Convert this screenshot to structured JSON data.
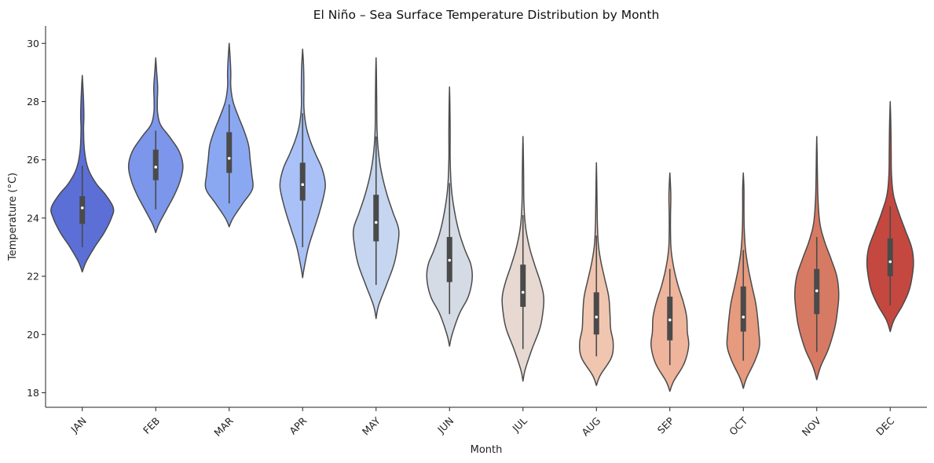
{
  "chart_data": {
    "type": "violin",
    "title": "El Niño – Sea Surface Temperature Distribution by Month",
    "xlabel": "Month",
    "ylabel": "Temperature (°C)",
    "ylim": [
      17.5,
      30.6
    ],
    "yticks": [
      18,
      20,
      22,
      24,
      26,
      28,
      30
    ],
    "grid": false,
    "categories": [
      "JAN",
      "FEB",
      "MAR",
      "APR",
      "MAY",
      "JUN",
      "JUL",
      "AUG",
      "SEP",
      "OCT",
      "NOV",
      "DEC"
    ],
    "colors": [
      "#5b6fd6",
      "#7b96ea",
      "#8aa8f2",
      "#a9c1f7",
      "#c6d6f0",
      "#d5dbe4",
      "#e7d8d2",
      "#f0c6b1",
      "#efb49c",
      "#e69a7e",
      "#d77a64",
      "#c4483f"
    ],
    "series": [
      {
        "name": "JAN",
        "min": 23.0,
        "q1": 23.8,
        "median": 24.35,
        "q3": 24.75,
        "max": 25.8,
        "extent": [
          22.15,
          28.9
        ],
        "density": [
          [
            22.15,
            0.0
          ],
          [
            22.5,
            0.12
          ],
          [
            23.0,
            0.38
          ],
          [
            23.5,
            0.68
          ],
          [
            24.0,
            0.9
          ],
          [
            24.35,
            0.96
          ],
          [
            24.8,
            0.72
          ],
          [
            25.2,
            0.42
          ],
          [
            25.7,
            0.18
          ],
          [
            26.3,
            0.07
          ],
          [
            27.0,
            0.04
          ],
          [
            27.5,
            0.05
          ],
          [
            28.0,
            0.04
          ],
          [
            28.5,
            0.02
          ],
          [
            28.9,
            0.0
          ]
        ]
      },
      {
        "name": "FEB",
        "min": 24.3,
        "q1": 25.3,
        "median": 25.75,
        "q3": 26.35,
        "max": 27.0,
        "extent": [
          23.5,
          29.5
        ],
        "density": [
          [
            23.5,
            0.0
          ],
          [
            23.8,
            0.1
          ],
          [
            24.3,
            0.34
          ],
          [
            24.8,
            0.58
          ],
          [
            25.3,
            0.76
          ],
          [
            25.8,
            0.84
          ],
          [
            26.3,
            0.72
          ],
          [
            26.8,
            0.42
          ],
          [
            27.2,
            0.15
          ],
          [
            27.6,
            0.06
          ],
          [
            28.0,
            0.05
          ],
          [
            28.5,
            0.06
          ],
          [
            29.0,
            0.03
          ],
          [
            29.5,
            0.0
          ]
        ]
      },
      {
        "name": "MAR",
        "min": 24.5,
        "q1": 25.55,
        "median": 26.05,
        "q3": 26.95,
        "max": 27.9,
        "extent": [
          23.7,
          30.0
        ],
        "density": [
          [
            23.7,
            0.0
          ],
          [
            24.0,
            0.12
          ],
          [
            24.5,
            0.42
          ],
          [
            25.0,
            0.72
          ],
          [
            25.5,
            0.7
          ],
          [
            26.0,
            0.65
          ],
          [
            26.5,
            0.6
          ],
          [
            27.0,
            0.46
          ],
          [
            27.5,
            0.28
          ],
          [
            28.0,
            0.12
          ],
          [
            28.5,
            0.05
          ],
          [
            29.0,
            0.05
          ],
          [
            29.5,
            0.03
          ],
          [
            30.0,
            0.0
          ]
        ]
      },
      {
        "name": "APR",
        "min": 23.0,
        "q1": 24.6,
        "median": 25.15,
        "q3": 25.9,
        "max": 27.6,
        "extent": [
          21.95,
          29.8
        ],
        "density": [
          [
            21.95,
            0.0
          ],
          [
            22.3,
            0.05
          ],
          [
            23.0,
            0.18
          ],
          [
            23.6,
            0.35
          ],
          [
            24.2,
            0.52
          ],
          [
            24.8,
            0.66
          ],
          [
            25.2,
            0.7
          ],
          [
            25.7,
            0.6
          ],
          [
            26.2,
            0.4
          ],
          [
            26.7,
            0.22
          ],
          [
            27.2,
            0.1
          ],
          [
            27.8,
            0.04
          ],
          [
            28.5,
            0.04
          ],
          [
            29.2,
            0.03
          ],
          [
            29.8,
            0.0
          ]
        ]
      },
      {
        "name": "MAY",
        "min": 21.7,
        "q1": 23.2,
        "median": 23.85,
        "q3": 24.8,
        "max": 26.8,
        "extent": [
          20.55,
          29.5
        ],
        "density": [
          [
            20.55,
            0.0
          ],
          [
            21.0,
            0.08
          ],
          [
            21.7,
            0.32
          ],
          [
            22.4,
            0.55
          ],
          [
            23.0,
            0.66
          ],
          [
            23.6,
            0.7
          ],
          [
            24.2,
            0.52
          ],
          [
            24.8,
            0.34
          ],
          [
            25.5,
            0.18
          ],
          [
            26.2,
            0.08
          ],
          [
            27.0,
            0.03
          ],
          [
            28.0,
            0.02
          ],
          [
            29.0,
            0.01
          ],
          [
            29.5,
            0.0
          ]
        ]
      },
      {
        "name": "JUN",
        "min": 20.7,
        "q1": 21.8,
        "median": 22.55,
        "q3": 23.35,
        "max": 25.2,
        "extent": [
          19.6,
          28.5
        ],
        "density": [
          [
            19.6,
            0.0
          ],
          [
            20.0,
            0.08
          ],
          [
            20.7,
            0.3
          ],
          [
            21.3,
            0.58
          ],
          [
            21.9,
            0.7
          ],
          [
            22.4,
            0.66
          ],
          [
            22.9,
            0.48
          ],
          [
            23.5,
            0.3
          ],
          [
            24.2,
            0.16
          ],
          [
            25.0,
            0.06
          ],
          [
            26.0,
            0.02
          ],
          [
            27.0,
            0.02
          ],
          [
            28.0,
            0.01
          ],
          [
            28.5,
            0.0
          ]
        ]
      },
      {
        "name": "JUL",
        "min": 19.5,
        "q1": 20.95,
        "median": 21.45,
        "q3": 22.4,
        "max": 24.1,
        "extent": [
          18.4,
          26.8
        ],
        "density": [
          [
            18.4,
            0.0
          ],
          [
            18.8,
            0.07
          ],
          [
            19.5,
            0.28
          ],
          [
            20.2,
            0.52
          ],
          [
            20.8,
            0.62
          ],
          [
            21.3,
            0.64
          ],
          [
            21.8,
            0.54
          ],
          [
            22.4,
            0.36
          ],
          [
            23.0,
            0.2
          ],
          [
            23.7,
            0.08
          ],
          [
            24.5,
            0.03
          ],
          [
            25.5,
            0.02
          ],
          [
            26.3,
            0.01
          ],
          [
            26.8,
            0.0
          ]
        ]
      },
      {
        "name": "AUG",
        "min": 19.25,
        "q1": 20.0,
        "median": 20.6,
        "q3": 21.45,
        "max": 23.4,
        "extent": [
          18.25,
          25.9
        ],
        "density": [
          [
            18.25,
            0.0
          ],
          [
            18.6,
            0.12
          ],
          [
            19.2,
            0.46
          ],
          [
            19.7,
            0.52
          ],
          [
            20.2,
            0.44
          ],
          [
            20.7,
            0.42
          ],
          [
            21.3,
            0.38
          ],
          [
            21.9,
            0.26
          ],
          [
            22.5,
            0.14
          ],
          [
            23.1,
            0.06
          ],
          [
            23.8,
            0.03
          ],
          [
            24.5,
            0.02
          ],
          [
            25.3,
            0.01
          ],
          [
            25.9,
            0.0
          ]
        ]
      },
      {
        "name": "SEP",
        "min": 18.95,
        "q1": 19.8,
        "median": 20.5,
        "q3": 21.3,
        "max": 22.25,
        "extent": [
          18.05,
          25.55
        ],
        "density": [
          [
            18.05,
            0.0
          ],
          [
            18.4,
            0.12
          ],
          [
            19.0,
            0.44
          ],
          [
            19.6,
            0.58
          ],
          [
            20.1,
            0.54
          ],
          [
            20.6,
            0.52
          ],
          [
            21.1,
            0.42
          ],
          [
            21.7,
            0.25
          ],
          [
            22.3,
            0.12
          ],
          [
            22.9,
            0.04
          ],
          [
            23.5,
            0.02
          ],
          [
            24.1,
            0.02
          ],
          [
            24.7,
            0.03
          ],
          [
            25.1,
            0.02
          ],
          [
            25.55,
            0.0
          ]
        ]
      },
      {
        "name": "OCT",
        "min": 19.1,
        "q1": 20.1,
        "median": 20.6,
        "q3": 21.65,
        "max": 22.9,
        "extent": [
          18.15,
          25.55
        ],
        "density": [
          [
            18.15,
            0.0
          ],
          [
            18.5,
            0.1
          ],
          [
            19.1,
            0.36
          ],
          [
            19.6,
            0.5
          ],
          [
            20.1,
            0.48
          ],
          [
            20.6,
            0.44
          ],
          [
            21.1,
            0.38
          ],
          [
            21.7,
            0.26
          ],
          [
            22.3,
            0.15
          ],
          [
            22.9,
            0.07
          ],
          [
            23.6,
            0.03
          ],
          [
            24.3,
            0.02
          ],
          [
            25.0,
            0.02
          ],
          [
            25.55,
            0.0
          ]
        ]
      },
      {
        "name": "NOV",
        "min": 19.4,
        "q1": 20.7,
        "median": 21.5,
        "q3": 22.25,
        "max": 23.35,
        "extent": [
          18.45,
          26.8
        ],
        "density": [
          [
            18.45,
            0.0
          ],
          [
            18.9,
            0.12
          ],
          [
            19.5,
            0.36
          ],
          [
            20.2,
            0.55
          ],
          [
            20.8,
            0.64
          ],
          [
            21.4,
            0.68
          ],
          [
            22.0,
            0.62
          ],
          [
            22.6,
            0.44
          ],
          [
            23.2,
            0.24
          ],
          [
            23.8,
            0.1
          ],
          [
            24.6,
            0.04
          ],
          [
            25.5,
            0.02
          ],
          [
            26.3,
            0.01
          ],
          [
            26.8,
            0.0
          ]
        ]
      },
      {
        "name": "DEC",
        "min": 21.0,
        "q1": 22.0,
        "median": 22.5,
        "q3": 23.3,
        "max": 24.4,
        "extent": [
          20.1,
          28.0
        ],
        "density": [
          [
            20.1,
            0.0
          ],
          [
            20.5,
            0.12
          ],
          [
            21.0,
            0.38
          ],
          [
            21.5,
            0.58
          ],
          [
            22.0,
            0.68
          ],
          [
            22.5,
            0.72
          ],
          [
            23.0,
            0.66
          ],
          [
            23.6,
            0.46
          ],
          [
            24.2,
            0.26
          ],
          [
            24.8,
            0.1
          ],
          [
            25.5,
            0.04
          ],
          [
            26.3,
            0.03
          ],
          [
            27.2,
            0.02
          ],
          [
            28.0,
            0.0
          ]
        ]
      }
    ]
  }
}
